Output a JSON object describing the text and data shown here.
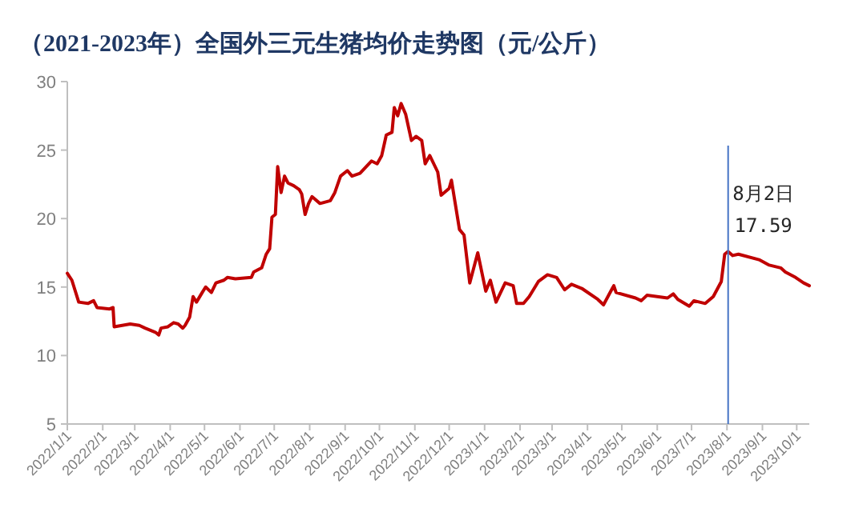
{
  "chart_data": {
    "type": "line",
    "title": "（2021-2023年）全国外三元生猪均价走势图（元/公斤）",
    "x": [
      "2022-01-01",
      "2022-01-05",
      "2022-01-11",
      "2022-01-19",
      "2022-01-24",
      "2022-01-27",
      "2022-02-07",
      "2022-02-10",
      "2022-02-11",
      "2022-02-18",
      "2022-02-25",
      "2022-03-05",
      "2022-03-10",
      "2022-03-19",
      "2022-03-22",
      "2022-03-24",
      "2022-03-30",
      "2022-04-04",
      "2022-04-08",
      "2022-04-12",
      "2022-04-14",
      "2022-04-18",
      "2022-04-21",
      "2022-04-24",
      "2022-04-29",
      "2022-05-02",
      "2022-05-07",
      "2022-05-11",
      "2022-05-18",
      "2022-05-21",
      "2022-05-28",
      "2022-06-11",
      "2022-06-13",
      "2022-06-20",
      "2022-06-24",
      "2022-06-27",
      "2022-06-29",
      "2022-07-02",
      "2022-07-04",
      "2022-07-07",
      "2022-07-10",
      "2022-07-13",
      "2022-07-18",
      "2022-07-23",
      "2022-07-25",
      "2022-07-28",
      "2022-07-31",
      "2022-08-03",
      "2022-08-10",
      "2022-08-19",
      "2022-08-23",
      "2022-08-28",
      "2022-09-03",
      "2022-09-07",
      "2022-09-14",
      "2022-09-24",
      "2022-09-29",
      "2022-10-03",
      "2022-10-07",
      "2022-10-12",
      "2022-10-14",
      "2022-10-17",
      "2022-10-20",
      "2022-10-24",
      "2022-10-29",
      "2022-11-02",
      "2022-11-07",
      "2022-11-10",
      "2022-11-14",
      "2022-11-21",
      "2022-11-24",
      "2022-12-01",
      "2022-12-03",
      "2022-12-10",
      "2022-12-14",
      "2022-12-19",
      "2022-12-26",
      "2023-01-02",
      "2023-01-06",
      "2023-01-11",
      "2023-01-19",
      "2023-01-26",
      "2023-01-29",
      "2023-02-04",
      "2023-02-09",
      "2023-02-17",
      "2023-02-25",
      "2023-03-05",
      "2023-03-12",
      "2023-03-18",
      "2023-03-27",
      "2023-04-10",
      "2023-04-15",
      "2023-04-24",
      "2023-04-26",
      "2023-05-13",
      "2023-05-18",
      "2023-05-23",
      "2023-06-10",
      "2023-06-15",
      "2023-06-19",
      "2023-06-29",
      "2023-07-03",
      "2023-07-13",
      "2023-07-20",
      "2023-07-27",
      "2023-07-30",
      "2023-08-02",
      "2023-08-06",
      "2023-08-11",
      "2023-08-29",
      "2023-09-07",
      "2023-09-17",
      "2023-09-21",
      "2023-09-30",
      "2023-10-07",
      "2023-10-12"
    ],
    "series": [
      {
        "color": "#c00000",
        "values": [
          16.0,
          15.5,
          13.9,
          13.8,
          14.0,
          13.5,
          13.4,
          13.5,
          12.1,
          12.2,
          12.3,
          12.2,
          12.0,
          11.7,
          11.5,
          12.0,
          12.1,
          12.4,
          12.3,
          12.0,
          12.2,
          12.8,
          14.3,
          13.9,
          14.6,
          15.0,
          14.6,
          15.3,
          15.5,
          15.7,
          15.6,
          15.7,
          16.1,
          16.4,
          17.4,
          17.8,
          20.1,
          20.3,
          23.8,
          21.9,
          23.1,
          22.6,
          22.4,
          22.1,
          21.8,
          20.3,
          21.1,
          21.6,
          21.1,
          21.3,
          21.9,
          23.1,
          23.5,
          23.1,
          23.3,
          24.2,
          24.0,
          24.6,
          26.1,
          26.3,
          28.1,
          27.5,
          28.4,
          27.6,
          25.7,
          26.0,
          25.7,
          24.0,
          24.6,
          23.4,
          21.7,
          22.2,
          22.8,
          19.2,
          18.8,
          15.3,
          17.5,
          14.7,
          15.5,
          13.9,
          15.3,
          15.1,
          13.8,
          13.8,
          14.3,
          15.4,
          15.9,
          15.7,
          14.8,
          15.2,
          14.9,
          14.1,
          13.7,
          15.1,
          14.6,
          14.2,
          14.0,
          14.4,
          14.2,
          14.5,
          14.1,
          13.6,
          14.0,
          13.8,
          14.3,
          15.4,
          17.4,
          17.59,
          17.3,
          17.4,
          17.0,
          16.6,
          16.4,
          16.1,
          15.7,
          15.3,
          15.1
        ]
      }
    ],
    "xlim": [
      "2022-01-01",
      "2023-10-12"
    ],
    "xticks": [
      {
        "value": "2022-01-01",
        "label": "2022/1/1"
      },
      {
        "value": "2022-02-01",
        "label": "2022/2/1"
      },
      {
        "value": "2022-03-01",
        "label": "2022/3/1"
      },
      {
        "value": "2022-04-01",
        "label": "2022/4/1"
      },
      {
        "value": "2022-05-01",
        "label": "2022/5/1"
      },
      {
        "value": "2022-06-01",
        "label": "2022/6/1"
      },
      {
        "value": "2022-07-01",
        "label": "2022/7/1"
      },
      {
        "value": "2022-08-01",
        "label": "2022/8/1"
      },
      {
        "value": "2022-09-01",
        "label": "2022/9/1"
      },
      {
        "value": "2022-10-01",
        "label": "2022/10/1"
      },
      {
        "value": "2022-11-01",
        "label": "2022/11/1"
      },
      {
        "value": "2022-12-01",
        "label": "2022/12/1"
      },
      {
        "value": "2023-01-01",
        "label": "2023/1/1"
      },
      {
        "value": "2023-02-01",
        "label": "2023/2/1"
      },
      {
        "value": "2023-03-01",
        "label": "2023/3/1"
      },
      {
        "value": "2023-04-01",
        "label": "2023/4/1"
      },
      {
        "value": "2023-05-01",
        "label": "2023/5/1"
      },
      {
        "value": "2023-06-01",
        "label": "2023/6/1"
      },
      {
        "value": "2023-07-01",
        "label": "2023/7/1"
      },
      {
        "value": "2023-08-01",
        "label": "2023/8/1"
      },
      {
        "value": "2023-09-01",
        "label": "2023/9/1"
      },
      {
        "value": "2023-10-01",
        "label": "2023/10/1"
      }
    ],
    "ylim": [
      5,
      30
    ],
    "yticks": [
      5,
      10,
      15,
      20,
      25,
      30
    ],
    "grid": false,
    "marker": "none",
    "line_style": "solid",
    "ref_lines": [
      {
        "axis": "x",
        "value": "2023-08-02",
        "color": "#4472c4"
      }
    ],
    "annotations": [
      {
        "text": "8月2日\n17.59",
        "x": "2023-08-02",
        "y": 17.59
      }
    ]
  }
}
